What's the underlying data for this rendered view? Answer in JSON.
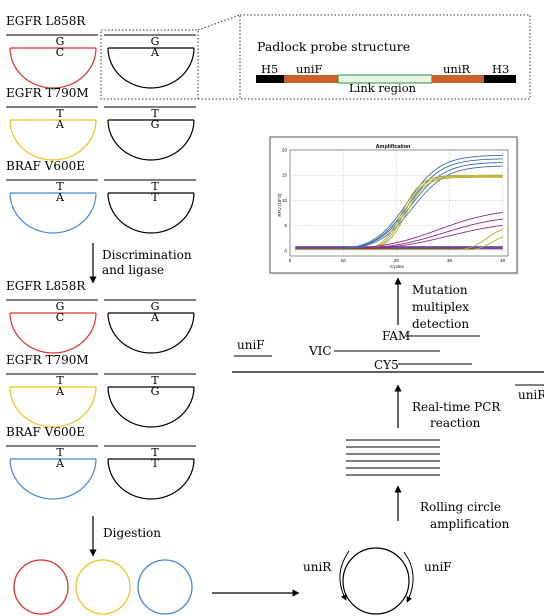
{
  "colors": {
    "red": "#e0302a",
    "yellow": "#f0c419",
    "blue": "#4a86d4",
    "black": "#111111",
    "probe_h": "#000000",
    "probe_uni": "#c8622a",
    "probe_link_fill": "#e6f5e4",
    "probe_link_stroke": "#2f8f3a",
    "curve_blue": "#3d6ea8",
    "curve_olive": "#b5a82c",
    "curve_purple": "#8a2b8a"
  },
  "top_groups": [
    {
      "label": "EGFR L858R",
      "probe_base": "C",
      "wt_base": "A",
      "target_base": "G",
      "color_key": "red"
    },
    {
      "label": "EGFR T790M",
      "probe_base": "A",
      "wt_base": "G",
      "target_base": "T",
      "color_key": "yellow"
    },
    {
      "label": "BRAF V600E",
      "probe_base": "A",
      "wt_base": "T",
      "target_base": "T",
      "color_key": "blue"
    }
  ],
  "bottom_groups": [
    {
      "label": "EGFR L858R",
      "probe_base": "C",
      "wt_base": "A",
      "target_base": "G",
      "color_key": "red"
    },
    {
      "label": "EGFR T790M",
      "probe_base": "A",
      "wt_base": "G",
      "target_base": "T",
      "color_key": "yellow"
    },
    {
      "label": "BRAF V600E",
      "probe_base": "A",
      "wt_base": "T",
      "target_base": "T",
      "color_key": "blue"
    }
  ],
  "steps": {
    "discrimination_line1": "Discrimination",
    "discrimination_line2": "and ligase",
    "digestion": "Digestion",
    "rca_line1": "Rolling circle",
    "rca_line2": "amplification",
    "pcr_line1": "Real-time PCR",
    "pcr_line2": "reaction",
    "detection_line1": "Mutation",
    "detection_line2": "multiplex",
    "detection_line3": "detection"
  },
  "padlock": {
    "title": "Padlock probe structure",
    "h5": "H5",
    "unif": "uniF",
    "link": "Link region",
    "unir": "uniR",
    "h3": "H3"
  },
  "primers": {
    "unif_left": "uniF",
    "unir_right": "uniR",
    "vic": "VIC",
    "fam": "FAM",
    "cy5": "CY5",
    "rca_unir": "uniR",
    "rca_unif": "uniF"
  },
  "chart_data": {
    "type": "line",
    "title": "Amplification",
    "xlabel": "Cycles",
    "ylabel": "RFU (10^3)",
    "xlim": [
      0,
      41
    ],
    "ylim": [
      -1,
      20
    ],
    "x_ticks": [
      0,
      10,
      20,
      30,
      40
    ],
    "y_ticks": [
      0,
      5,
      10,
      15,
      20
    ],
    "grid": true,
    "series": [
      {
        "color_key": "curve_blue",
        "plateau": 19.0,
        "midpoint": 22,
        "slope": 0.32
      },
      {
        "color_key": "curve_blue",
        "plateau": 18.3,
        "midpoint": 22.3,
        "slope": 0.32
      },
      {
        "color_key": "curve_blue",
        "plateau": 17.6,
        "midpoint": 22.6,
        "slope": 0.31
      },
      {
        "color_key": "curve_blue",
        "plateau": 16.9,
        "midpoint": 23,
        "slope": 0.31
      },
      {
        "color_key": "curve_olive",
        "plateau": 15.0,
        "midpoint": 21,
        "slope": 0.55
      },
      {
        "color_key": "curve_olive",
        "plateau": 14.8,
        "midpoint": 21.4,
        "slope": 0.55
      },
      {
        "color_key": "curve_olive",
        "plateau": 14.6,
        "midpoint": 21.8,
        "slope": 0.55
      },
      {
        "color_key": "curve_purple",
        "plateau": 8.5,
        "midpoint": 28,
        "slope": 0.18
      },
      {
        "color_key": "curve_purple",
        "plateau": 7.2,
        "midpoint": 29,
        "slope": 0.18
      },
      {
        "color_key": "curve_purple",
        "plateau": 6.0,
        "midpoint": 30,
        "slope": 0.17
      },
      {
        "color_key": "curve_olive",
        "plateau": 5.0,
        "midpoint": 37,
        "slope": 0.6
      },
      {
        "color_key": "curve_olive",
        "plateau": 3.5,
        "midpoint": 38,
        "slope": 0.7
      }
    ]
  }
}
